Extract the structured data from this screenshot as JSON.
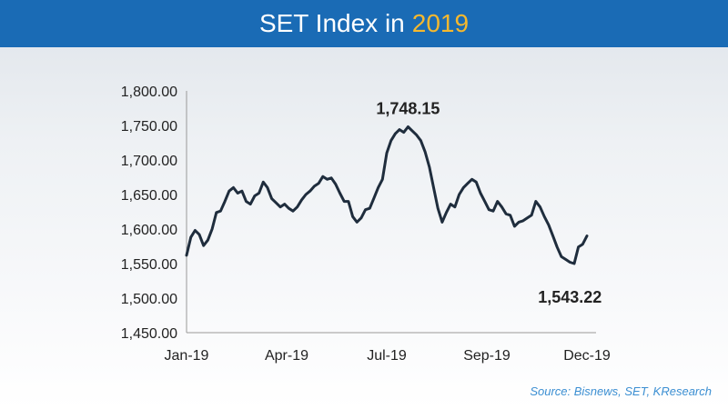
{
  "header": {
    "title_prefix": "SET Index in",
    "title_year": "2019",
    "title_color": "#1a6bb5",
    "year_color": "#f5b82e"
  },
  "source": "Source: Bisnews, SET, KResearch",
  "chart_data": {
    "type": "line",
    "title": "SET Index in 2019",
    "xlabel": "",
    "ylabel": "",
    "ylim": [
      1450,
      1800
    ],
    "yticks": [
      1450,
      1500,
      1550,
      1600,
      1650,
      1700,
      1750,
      1800
    ],
    "ytick_labels": [
      "1,450.00",
      "1,500.00",
      "1,550.00",
      "1,600.00",
      "1,650.00",
      "1,700.00",
      "1,750.00",
      "1,800.00"
    ],
    "xticks": [
      "Jan-19",
      "Apr-19",
      "Jul-19",
      "Sep-19",
      "Dec-19"
    ],
    "grid": false,
    "line_color": "#1f2d3d",
    "series": [
      {
        "values": [
          1562,
          1588,
          1598,
          1592,
          1576,
          1584,
          1600,
          1624,
          1626,
          1640,
          1655,
          1660,
          1652,
          1655,
          1640,
          1636,
          1648,
          1652,
          1668,
          1660,
          1644,
          1638,
          1632,
          1636,
          1630,
          1626,
          1632,
          1642,
          1650,
          1655,
          1662,
          1666,
          1676,
          1672,
          1674,
          1665,
          1652,
          1640,
          1640,
          1618,
          1610,
          1616,
          1628,
          1630,
          1645,
          1660,
          1672,
          1710,
          1728,
          1738,
          1744,
          1740,
          1748,
          1742,
          1736,
          1728,
          1712,
          1690,
          1660,
          1630,
          1610,
          1624,
          1636,
          1632,
          1650,
          1660,
          1666,
          1672,
          1668,
          1652,
          1640,
          1628,
          1626,
          1640,
          1632,
          1622,
          1620,
          1604,
          1610,
          1612,
          1616,
          1620,
          1640,
          1632,
          1618,
          1606,
          1590,
          1574,
          1560,
          1556,
          1552,
          1550,
          1574,
          1578,
          1590
        ]
      }
    ],
    "annotations": [
      {
        "text": "1,748.15",
        "value": 1748.15,
        "index": 52
      },
      {
        "text": "1,543.22",
        "value": 1543.22,
        "index": 90
      }
    ]
  }
}
